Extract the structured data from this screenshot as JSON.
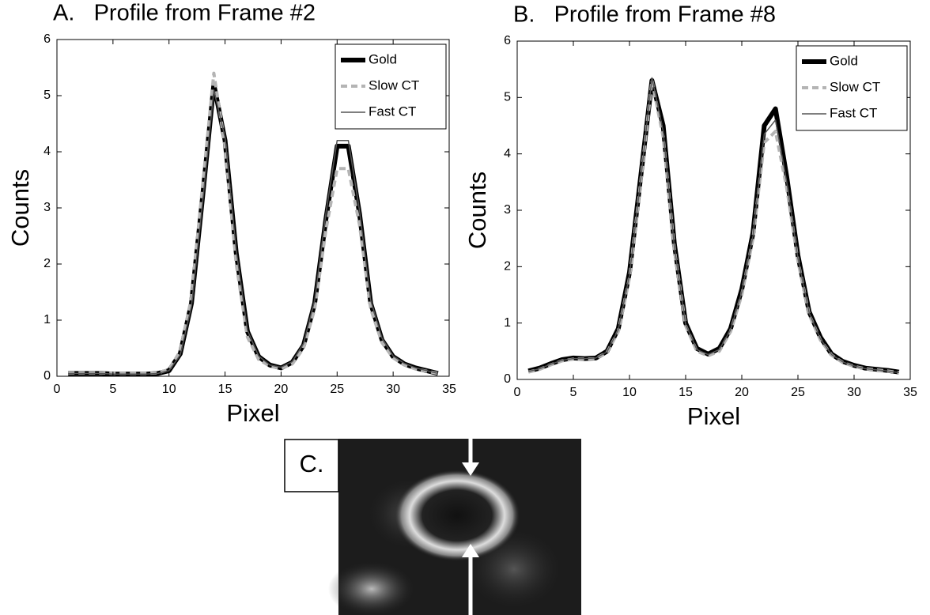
{
  "chart_data": [
    {
      "type": "line",
      "title": "A.   Profile from Frame #2",
      "xlabel": "Pixel",
      "ylabel": "Counts",
      "x": [
        1,
        2,
        3,
        4,
        5,
        6,
        7,
        8,
        9,
        10,
        11,
        12,
        13,
        14,
        15,
        16,
        17,
        18,
        19,
        20,
        21,
        22,
        23,
        24,
        25,
        26,
        27,
        28,
        29,
        30,
        31,
        32,
        33,
        34
      ],
      "series": [
        {
          "name": "Gold",
          "color": "#000000",
          "linewidth": 6,
          "linestyle": "solid",
          "values": [
            0.05,
            0.05,
            0.05,
            0.05,
            0.04,
            0.04,
            0.04,
            0.04,
            0.05,
            0.1,
            0.4,
            1.3,
            3.2,
            5.2,
            4.2,
            2.2,
            0.8,
            0.35,
            0.2,
            0.15,
            0.25,
            0.55,
            1.3,
            2.8,
            4.1,
            4.1,
            2.9,
            1.3,
            0.65,
            0.35,
            0.22,
            0.15,
            0.1,
            0.05
          ]
        },
        {
          "name": "Slow CT",
          "color": "#b4b4b4",
          "linewidth": 4,
          "linestyle": "dashed",
          "values": [
            0.06,
            0.06,
            0.06,
            0.06,
            0.05,
            0.05,
            0.05,
            0.05,
            0.06,
            0.12,
            0.45,
            1.4,
            3.4,
            5.4,
            4.1,
            2.0,
            0.7,
            0.3,
            0.18,
            0.14,
            0.22,
            0.5,
            1.2,
            2.6,
            3.7,
            3.7,
            2.7,
            1.2,
            0.6,
            0.33,
            0.2,
            0.13,
            0.09,
            0.05
          ]
        },
        {
          "name": "Fast CT",
          "color": "#555555",
          "linewidth": 1.5,
          "linestyle": "solid",
          "values": [
            0.05,
            0.05,
            0.05,
            0.05,
            0.04,
            0.04,
            0.04,
            0.04,
            0.05,
            0.1,
            0.38,
            1.25,
            3.1,
            5.1,
            4.25,
            2.25,
            0.82,
            0.36,
            0.2,
            0.16,
            0.26,
            0.58,
            1.35,
            2.9,
            4.2,
            4.2,
            2.95,
            1.35,
            0.68,
            0.36,
            0.23,
            0.15,
            0.1,
            0.05
          ]
        }
      ],
      "xlim": [
        0,
        35
      ],
      "xticks": [
        0,
        5,
        10,
        15,
        20,
        25,
        30,
        35
      ],
      "ylim": [
        0,
        6
      ],
      "yticks": [
        0,
        1,
        2,
        3,
        4,
        5,
        6
      ],
      "grid": false,
      "legend_position": "upper right"
    },
    {
      "type": "line",
      "title": "B.   Profile from Frame #8",
      "xlabel": "Pixel",
      "ylabel": "Counts",
      "x": [
        1,
        2,
        3,
        4,
        5,
        6,
        7,
        8,
        9,
        10,
        11,
        12,
        13,
        14,
        15,
        16,
        17,
        18,
        19,
        20,
        21,
        22,
        23,
        24,
        25,
        26,
        27,
        28,
        29,
        30,
        31,
        32,
        33,
        34
      ],
      "series": [
        {
          "name": "Gold",
          "color": "#000000",
          "linewidth": 6,
          "linestyle": "solid",
          "values": [
            0.15,
            0.2,
            0.28,
            0.35,
            0.38,
            0.37,
            0.38,
            0.5,
            0.9,
            1.9,
            3.6,
            5.3,
            4.5,
            2.4,
            1.0,
            0.55,
            0.45,
            0.55,
            0.9,
            1.6,
            2.6,
            4.5,
            4.8,
            3.6,
            2.2,
            1.2,
            0.75,
            0.45,
            0.32,
            0.25,
            0.2,
            0.18,
            0.16,
            0.13
          ]
        },
        {
          "name": "Slow CT",
          "color": "#b4b4b4",
          "linewidth": 4,
          "linestyle": "dashed",
          "values": [
            0.13,
            0.18,
            0.26,
            0.33,
            0.36,
            0.36,
            0.37,
            0.48,
            0.85,
            1.8,
            3.5,
            5.3,
            4.3,
            2.3,
            0.95,
            0.5,
            0.42,
            0.5,
            0.85,
            1.5,
            2.5,
            4.2,
            4.4,
            3.4,
            2.1,
            1.15,
            0.7,
            0.43,
            0.3,
            0.23,
            0.19,
            0.17,
            0.15,
            0.12
          ]
        },
        {
          "name": "Fast CT",
          "color": "#555555",
          "linewidth": 1.5,
          "linestyle": "solid",
          "values": [
            0.14,
            0.19,
            0.27,
            0.34,
            0.37,
            0.37,
            0.38,
            0.49,
            0.88,
            1.85,
            3.55,
            5.35,
            4.4,
            2.35,
            0.98,
            0.53,
            0.44,
            0.53,
            0.88,
            1.55,
            2.55,
            4.35,
            4.6,
            3.5,
            2.15,
            1.18,
            0.72,
            0.44,
            0.31,
            0.24,
            0.19,
            0.17,
            0.15,
            0.12
          ]
        }
      ],
      "xlim": [
        0,
        35
      ],
      "xticks": [
        0,
        5,
        10,
        15,
        20,
        25,
        30,
        35
      ],
      "ylim": [
        0,
        6
      ],
      "yticks": [
        0,
        1,
        2,
        3,
        4,
        5,
        6
      ],
      "grid": false,
      "legend_position": "upper right"
    }
  ],
  "image_panel": {
    "label": "C."
  }
}
